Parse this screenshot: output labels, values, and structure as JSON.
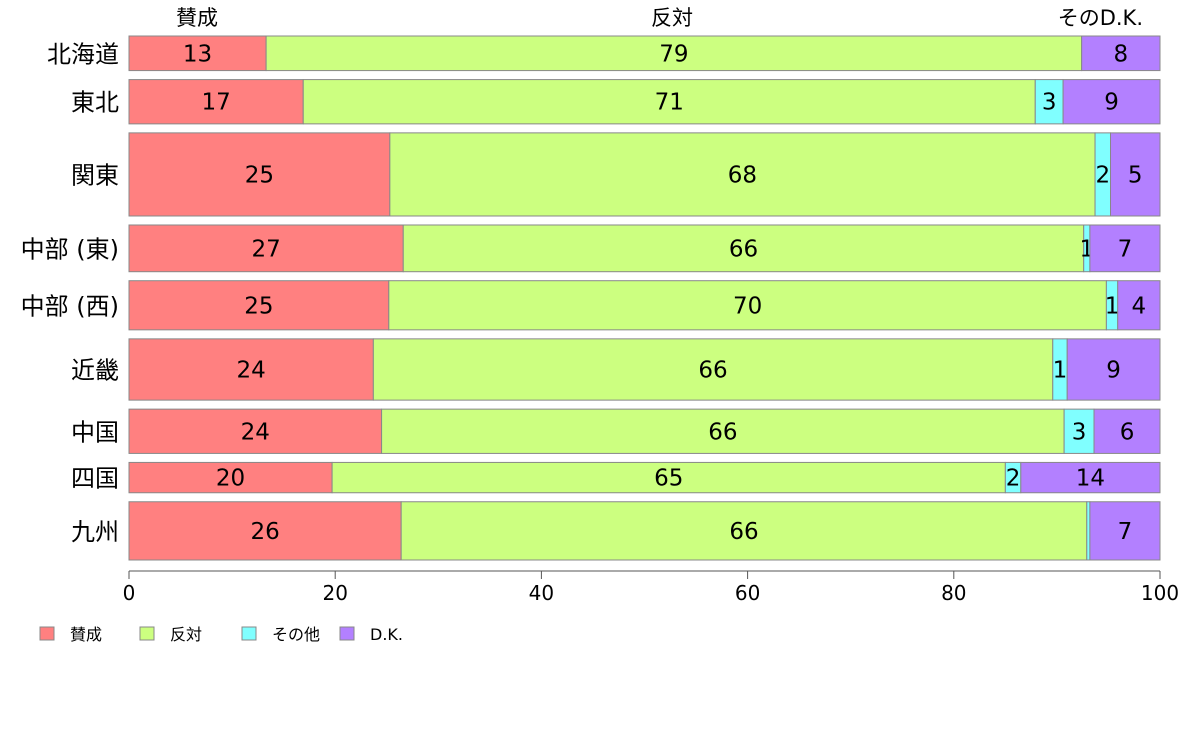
{
  "chart_data": {
    "type": "bar",
    "orientation": "horizontal",
    "stacked": true,
    "xlim": [
      0,
      100
    ],
    "x_ticks": [
      0,
      20,
      40,
      60,
      80,
      100
    ],
    "top_labels": [
      "賛成",
      "反対",
      "そのD.K."
    ],
    "categories": [
      "北海道",
      "東北",
      "関東",
      "中部 (東)",
      "中部 (西)",
      "近畿",
      "中国",
      "四国",
      "九州"
    ],
    "bar_widths": [
      0.57,
      0.73,
      1.37,
      0.77,
      0.81,
      1.01,
      0.73,
      0.5,
      0.96
    ],
    "series": [
      {
        "name": "賛成",
        "color": "#FF8080",
        "values": [
          13.3,
          16.9,
          25.3,
          26.6,
          25.2,
          23.7,
          24.5,
          19.7,
          26.4
        ],
        "labels": [
          "13",
          "17",
          "25",
          "27",
          "25",
          "24",
          "24",
          "20",
          "26"
        ]
      },
      {
        "name": "反対",
        "color": "#CCFF80",
        "values": [
          79.1,
          71.0,
          68.4,
          66.0,
          69.6,
          65.9,
          66.2,
          65.3,
          66.5
        ],
        "labels": [
          "79",
          "71",
          "68",
          "66",
          "70",
          "66",
          "66",
          "65",
          "66"
        ]
      },
      {
        "name": "その他",
        "color": "#80FFFF",
        "values": [
          0,
          2.7,
          1.5,
          0.6,
          1.1,
          1.4,
          2.9,
          1.5,
          0.3
        ],
        "labels": [
          "",
          "3",
          "2",
          "1",
          "1",
          "1",
          "3",
          "2",
          ""
        ]
      },
      {
        "name": "D.K.",
        "color": "#B380FF",
        "values": [
          7.6,
          9.4,
          4.8,
          6.8,
          4.1,
          9.0,
          6.4,
          13.5,
          6.8
        ],
        "labels": [
          "8",
          "9",
          "5",
          "7",
          "4",
          "9",
          "6",
          "14",
          "7"
        ]
      }
    ],
    "legend": {
      "position": "bottom-left",
      "items": [
        "賛成",
        "反対",
        "その他",
        "D.K."
      ]
    },
    "grid": false
  }
}
